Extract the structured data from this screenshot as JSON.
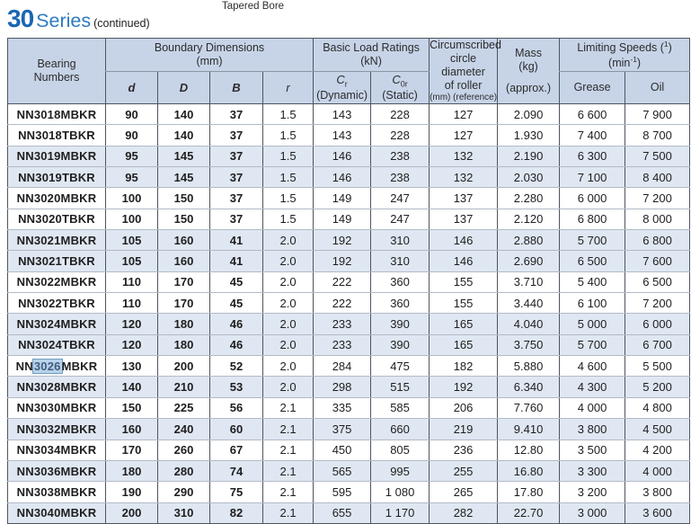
{
  "page": {
    "top_label": "Tapered Bore",
    "title_number": "30",
    "title_text": "Series",
    "title_suffix": "(continued)"
  },
  "table": {
    "headers": {
      "bearing_line1": "Bearing",
      "bearing_line2": "Numbers",
      "boundary_group_line1": "Boundary Dimensions",
      "boundary_group_line2": "(mm)",
      "d": "d",
      "D": "D",
      "B": "B",
      "r": "r",
      "load_group_line1": "Basic Load Ratings",
      "load_group_line2": "(kN)",
      "cr_symbol": "C",
      "cr_sub": "r",
      "cr_label": "(Dynamic)",
      "c0r_symbol": "C",
      "c0r_sub": "0r",
      "c0r_label": "(Static)",
      "circ_line1": "Circumscribed",
      "circ_line2": "circle diameter",
      "circ_line3": "of roller",
      "circ_line4": "(mm) (reference)",
      "mass_line1": "Mass",
      "mass_line2": "(kg)",
      "mass_line3": "(approx.)",
      "speed_group_prefix": "Limiting Speeds (",
      "speed_group_sup": "1",
      "speed_group_suffix": ")",
      "speed_unit_prefix": "(min",
      "speed_unit_sup": "-1",
      "speed_unit_suffix": ")",
      "grease": "Grease",
      "oil": "Oil"
    },
    "rows": [
      {
        "bearing": "NN3018MBKR",
        "d": "90",
        "D": "140",
        "B": "37",
        "r": "1.5",
        "cr": "143",
        "c0r": "228",
        "circ": "127",
        "mass": "2.090",
        "grease": "6 600",
        "oil": "7 900",
        "shaded": false
      },
      {
        "bearing": "NN3018TBKR",
        "d": "90",
        "D": "140",
        "B": "37",
        "r": "1.5",
        "cr": "143",
        "c0r": "228",
        "circ": "127",
        "mass": "1.930",
        "grease": "7 400",
        "oil": "8 700",
        "shaded": false
      },
      {
        "bearing": "NN3019MBKR",
        "d": "95",
        "D": "145",
        "B": "37",
        "r": "1.5",
        "cr": "146",
        "c0r": "238",
        "circ": "132",
        "mass": "2.190",
        "grease": "6 300",
        "oil": "7 500",
        "shaded": true
      },
      {
        "bearing": "NN3019TBKR",
        "d": "95",
        "D": "145",
        "B": "37",
        "r": "1.5",
        "cr": "146",
        "c0r": "238",
        "circ": "132",
        "mass": "2.030",
        "grease": "7 100",
        "oil": "8 400",
        "shaded": true
      },
      {
        "bearing": "NN3020MBKR",
        "d": "100",
        "D": "150",
        "B": "37",
        "r": "1.5",
        "cr": "149",
        "c0r": "247",
        "circ": "137",
        "mass": "2.280",
        "grease": "6 000",
        "oil": "7 200",
        "shaded": false
      },
      {
        "bearing": "NN3020TBKR",
        "d": "100",
        "D": "150",
        "B": "37",
        "r": "1.5",
        "cr": "149",
        "c0r": "247",
        "circ": "137",
        "mass": "2.120",
        "grease": "6 800",
        "oil": "8 000",
        "shaded": false
      },
      {
        "bearing": "NN3021MBKR",
        "d": "105",
        "D": "160",
        "B": "41",
        "r": "2.0",
        "cr": "192",
        "c0r": "310",
        "circ": "146",
        "mass": "2.880",
        "grease": "5 700",
        "oil": "6 800",
        "shaded": true
      },
      {
        "bearing": "NN3021TBKR",
        "d": "105",
        "D": "160",
        "B": "41",
        "r": "2.0",
        "cr": "192",
        "c0r": "310",
        "circ": "146",
        "mass": "2.690",
        "grease": "6 500",
        "oil": "7 600",
        "shaded": true
      },
      {
        "bearing": "NN3022MBKR",
        "d": "110",
        "D": "170",
        "B": "45",
        "r": "2.0",
        "cr": "222",
        "c0r": "360",
        "circ": "155",
        "mass": "3.710",
        "grease": "5 400",
        "oil": "6 500",
        "shaded": false
      },
      {
        "bearing": "NN3022TBKR",
        "d": "110",
        "D": "170",
        "B": "45",
        "r": "2.0",
        "cr": "222",
        "c0r": "360",
        "circ": "155",
        "mass": "3.440",
        "grease": "6 100",
        "oil": "7 200",
        "shaded": false
      },
      {
        "bearing": "NN3024MBKR",
        "d": "120",
        "D": "180",
        "B": "46",
        "r": "2.0",
        "cr": "233",
        "c0r": "390",
        "circ": "165",
        "mass": "4.040",
        "grease": "5 000",
        "oil": "6 000",
        "shaded": true
      },
      {
        "bearing": "NN3024TBKR",
        "d": "120",
        "D": "180",
        "B": "46",
        "r": "2.0",
        "cr": "233",
        "c0r": "390",
        "circ": "165",
        "mass": "3.750",
        "grease": "5 700",
        "oil": "6 700",
        "shaded": true
      },
      {
        "bearing": "NN3026MBKR",
        "bearing_parts": [
          "NN",
          "3026",
          "MBKR"
        ],
        "d": "130",
        "D": "200",
        "B": "52",
        "r": "2.0",
        "cr": "284",
        "c0r": "475",
        "circ": "182",
        "mass": "5.880",
        "grease": "4 600",
        "oil": "5 500",
        "shaded": false
      },
      {
        "bearing": "NN3028MBKR",
        "d": "140",
        "D": "210",
        "B": "53",
        "r": "2.0",
        "cr": "298",
        "c0r": "515",
        "circ": "192",
        "mass": "6.340",
        "grease": "4 300",
        "oil": "5 200",
        "shaded": true
      },
      {
        "bearing": "NN3030MBKR",
        "d": "150",
        "D": "225",
        "B": "56",
        "r": "2.1",
        "cr": "335",
        "c0r": "585",
        "circ": "206",
        "mass": "7.760",
        "grease": "4 000",
        "oil": "4 800",
        "shaded": false
      },
      {
        "bearing": "NN3032MBKR",
        "d": "160",
        "D": "240",
        "B": "60",
        "r": "2.1",
        "cr": "375",
        "c0r": "660",
        "circ": "219",
        "mass": "9.410",
        "grease": "3 800",
        "oil": "4 500",
        "shaded": true
      },
      {
        "bearing": "NN3034MBKR",
        "d": "170",
        "D": "260",
        "B": "67",
        "r": "2.1",
        "cr": "450",
        "c0r": "805",
        "circ": "236",
        "mass": "12.80",
        "grease": "3 500",
        "oil": "4 200",
        "shaded": false
      },
      {
        "bearing": "NN3036MBKR",
        "d": "180",
        "D": "280",
        "B": "74",
        "r": "2.1",
        "cr": "565",
        "c0r": "995",
        "circ": "255",
        "mass": "16.80",
        "grease": "3 300",
        "oil": "4 000",
        "shaded": true
      },
      {
        "bearing": "NN3038MBKR",
        "d": "190",
        "D": "290",
        "B": "75",
        "r": "2.1",
        "cr": "595",
        "c0r": "1 080",
        "circ": "265",
        "mass": "17.80",
        "grease": "3 200",
        "oil": "3 800",
        "shaded": false
      },
      {
        "bearing": "NN3040MBKR",
        "d": "200",
        "D": "310",
        "B": "82",
        "r": "2.1",
        "cr": "655",
        "c0r": "1 170",
        "circ": "282",
        "mass": "22.70",
        "grease": "3 000",
        "oil": "3 600",
        "shaded": true
      }
    ]
  },
  "colors": {
    "accent_blue": "#1a66b4",
    "series_blue": "#2e7ac1",
    "header_bg": "#c7d4e8",
    "row_shaded_bg": "#dfe7f2",
    "grid_dark": "#4e5560",
    "grid_light": "#b2bac6",
    "highlight_bg": "#b7d2ea",
    "highlight_border": "#6f9dc4",
    "highlight_text": "#3f5d7d",
    "text": "#1e1e1e"
  }
}
